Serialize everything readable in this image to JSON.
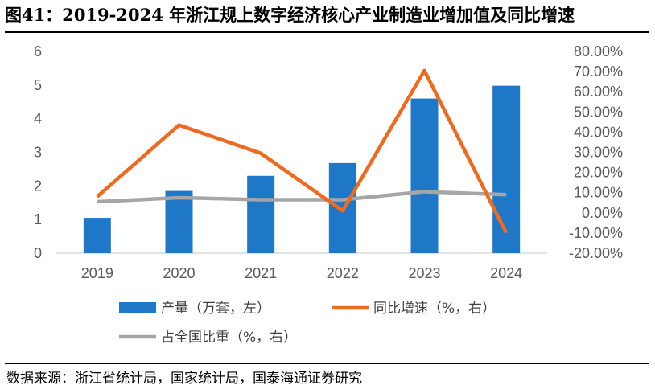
{
  "title": "图41：2019-2024 年浙江规上数字经济核心产业制造业增加值及同比增速",
  "source": "数据来源：浙江省统计局，国家统计局，国泰海通证券研究",
  "colors": {
    "bar": "#1f77c8",
    "growth": "#f06a1e",
    "share": "#a6a6a6"
  },
  "chart_data": {
    "type": "bar",
    "title": "2019-2024 年浙江规上数字经济核心产业制造业增加值及同比增速",
    "categories": [
      "2019",
      "2020",
      "2021",
      "2022",
      "2023",
      "2024"
    ],
    "series": [
      {
        "name": "产量（万套，左）",
        "type": "bar",
        "axis": "left",
        "values": [
          1.05,
          1.85,
          2.3,
          2.68,
          4.6,
          4.98
        ]
      },
      {
        "name": "同比增速（%，右）",
        "type": "line",
        "axis": "right",
        "values": [
          8.0,
          43.5,
          29.5,
          1.0,
          70.5,
          -10.0
        ]
      },
      {
        "name": "占全国比重（%，右）",
        "type": "line",
        "axis": "right",
        "values": [
          5.5,
          7.5,
          6.5,
          6.5,
          10.5,
          9.0
        ]
      }
    ],
    "ylim_left": [
      0,
      6
    ],
    "yticks_left": [
      "0",
      "1",
      "2",
      "3",
      "4",
      "5",
      "6"
    ],
    "ylim_right": [
      -20,
      80
    ],
    "yticks_right": [
      "-20.00%",
      "-10.00%",
      "0.00%",
      "10.00%",
      "20.00%",
      "30.00%",
      "40.00%",
      "50.00%",
      "60.00%",
      "70.00%",
      "80.00%"
    ],
    "grid": false,
    "legend_position": "bottom"
  }
}
